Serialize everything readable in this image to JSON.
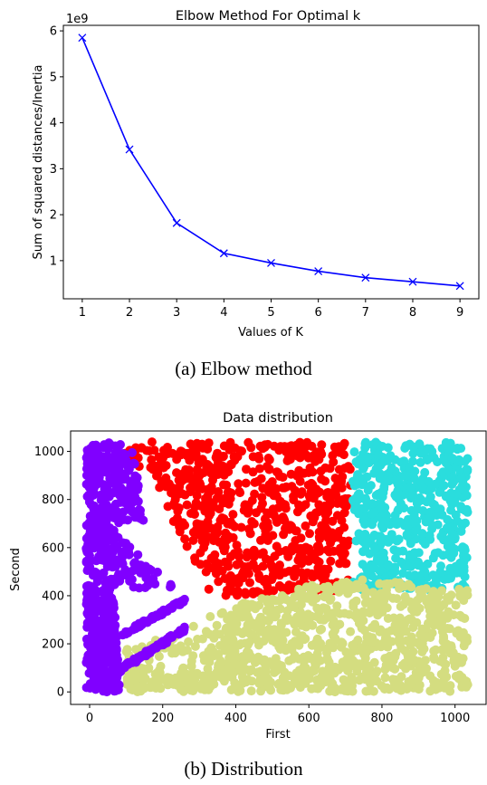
{
  "figure": {
    "caption_a": "(a) Elbow method",
    "caption_b": "(b) Distribution"
  },
  "chart_data": [
    {
      "type": "line",
      "title": "Elbow Method For Optimal k",
      "xlabel": "Values of K",
      "ylabel": "Sum of squared distances/Inertia",
      "y_offset_text": "1e9",
      "x": [
        1,
        2,
        3,
        4,
        5,
        6,
        7,
        8,
        9
      ],
      "xlim": [
        0.6,
        9.4
      ],
      "ylim": [
        0.17,
        6.12
      ],
      "xticks": [
        1,
        2,
        3,
        4,
        5,
        6,
        7,
        8,
        9
      ],
      "yticks": [
        1,
        2,
        3,
        4,
        5,
        6
      ],
      "series": [
        {
          "values": [
            5.85,
            3.42,
            1.82,
            1.16,
            0.95,
            0.77,
            0.63,
            0.54,
            0.45
          ],
          "color": "#0000ff",
          "marker": "x"
        }
      ],
      "grid": false
    },
    {
      "type": "scatter",
      "title": "Data distribution",
      "xlabel": "First",
      "ylabel": "Second",
      "xlim": [
        -52,
        1085
      ],
      "ylim": [
        -52,
        1085
      ],
      "xticks": [
        0,
        200,
        400,
        600,
        800,
        1000
      ],
      "yticks": [
        0,
        200,
        400,
        600,
        800,
        1000
      ],
      "clusters": [
        {
          "color": "#8000ff",
          "region": "left wedge and diagonal streaks, x 0-260"
        },
        {
          "color": "#ff0000",
          "region": "upper middle, x 60-720, y 400-1040"
        },
        {
          "color": "#2adddd",
          "region": "upper right, x 720-1035, y 420-1040"
        },
        {
          "color": "#d4dd80",
          "region": "lower right and bottom band, x 100-1035, y 0-500"
        }
      ],
      "grid": false
    }
  ]
}
